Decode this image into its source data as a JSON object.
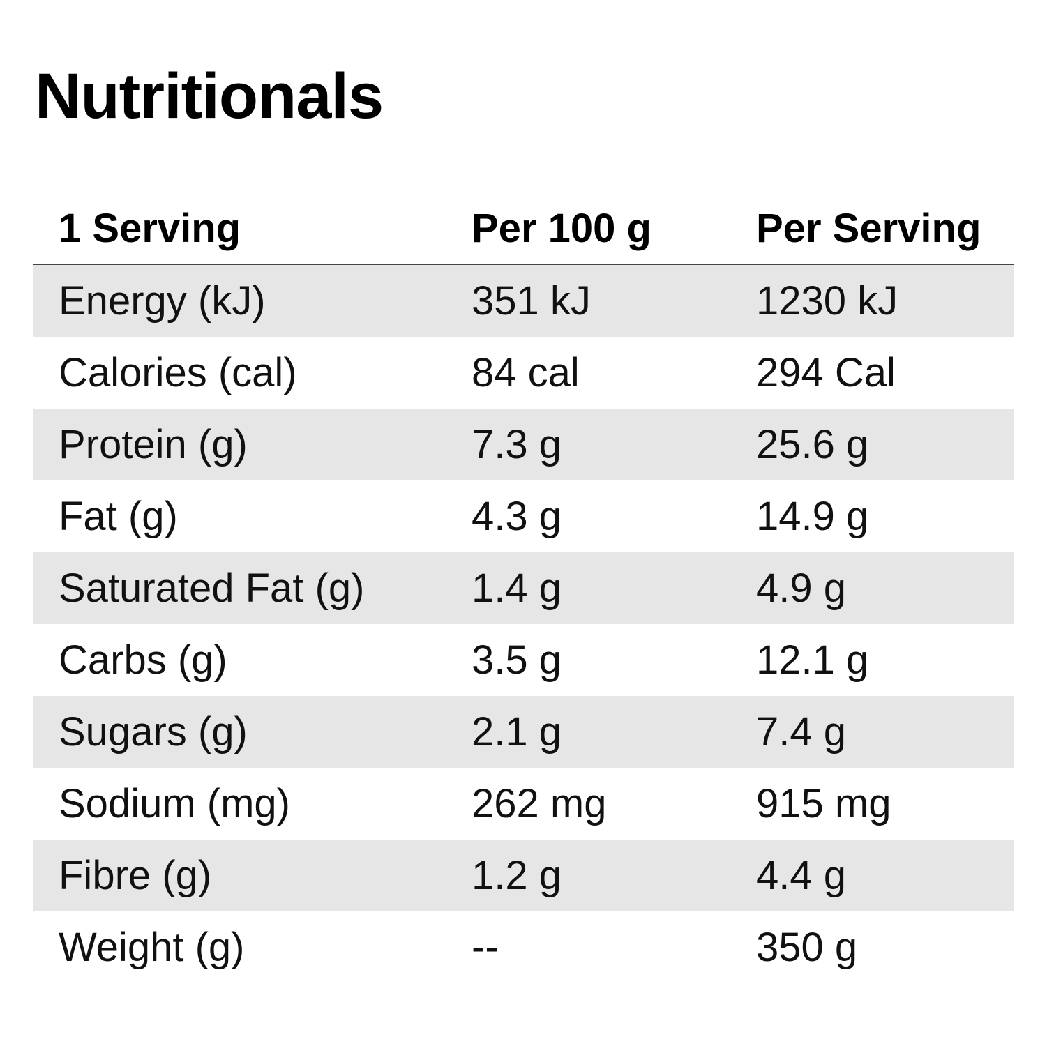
{
  "title": "Nutritionals",
  "header": {
    "col1": "1 Serving",
    "col2": "Per 100 g",
    "col3": "Per Serving"
  },
  "rows": [
    {
      "label": "Energy (kJ)",
      "per100": "351 kJ",
      "perServing": "1230 kJ"
    },
    {
      "label": "Calories (cal)",
      "per100": "84 cal",
      "perServing": "294 Cal"
    },
    {
      "label": "Protein (g)",
      "per100": "7.3 g",
      "perServing": "25.6 g"
    },
    {
      "label": "Fat (g)",
      "per100": "4.3 g",
      "perServing": "14.9 g"
    },
    {
      "label": "Saturated Fat (g)",
      "per100": "1.4 g",
      "perServing": "4.9 g"
    },
    {
      "label": "Carbs (g)",
      "per100": "3.5 g",
      "perServing": "12.1 g"
    },
    {
      "label": "Sugars (g)",
      "per100": "2.1 g",
      "perServing": "7.4 g"
    },
    {
      "label": "Sodium (mg)",
      "per100": "262 mg",
      "perServing": "915 mg"
    },
    {
      "label": "Fibre (g)",
      "per100": "1.2 g",
      "perServing": "4.4 g"
    },
    {
      "label": "Weight (g)",
      "per100": "--",
      "perServing": "350 g"
    }
  ],
  "colors": {
    "shaded_row": "#e6e6e6",
    "header_rule": "#444444"
  }
}
